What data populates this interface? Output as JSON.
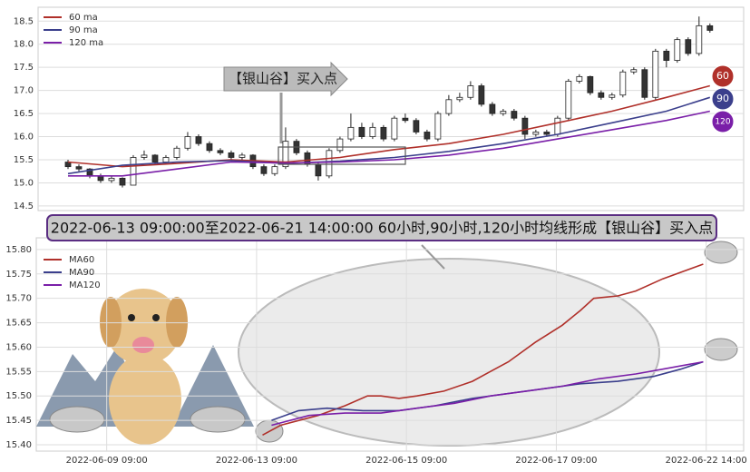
{
  "chart_data": [
    {
      "type": "candlestick",
      "annotation": "【银山谷】买入点",
      "ylim": [
        14.4,
        18.8
      ],
      "xlim": [
        -2.75,
        62.1
      ],
      "yticks": [
        14.5,
        {
          "value": 15.0,
          "label": "15.0"
        },
        15.5,
        {
          "value": 16.0,
          "label": "16.0"
        },
        16.5,
        {
          "value": 17.0,
          "label": "17.0"
        },
        17.5,
        {
          "value": 18.0,
          "label": "18.0"
        },
        18.5
      ],
      "grid": true,
      "candles": [
        [
          15.45,
          15.5,
          15.3,
          15.35
        ],
        [
          15.35,
          15.4,
          15.25,
          15.3
        ],
        [
          15.3,
          15.32,
          15.1,
          15.15
        ],
        [
          15.15,
          15.2,
          15.0,
          15.05
        ],
        [
          15.05,
          15.15,
          15.0,
          15.1
        ],
        [
          15.1,
          15.12,
          14.9,
          14.95
        ],
        [
          14.95,
          15.6,
          14.95,
          15.55
        ],
        [
          15.55,
          15.7,
          15.5,
          15.6
        ],
        [
          15.6,
          15.62,
          15.4,
          15.45
        ],
        [
          15.45,
          15.6,
          15.4,
          15.55
        ],
        [
          15.55,
          15.8,
          15.5,
          15.75
        ],
        [
          15.75,
          16.1,
          15.7,
          16.0
        ],
        [
          16.0,
          16.05,
          15.8,
          15.85
        ],
        [
          15.85,
          15.9,
          15.65,
          15.7
        ],
        [
          15.7,
          15.75,
          15.6,
          15.65
        ],
        [
          15.65,
          15.7,
          15.5,
          15.55
        ],
        [
          15.55,
          15.65,
          15.5,
          15.6
        ],
        [
          15.6,
          15.62,
          15.3,
          15.35
        ],
        [
          15.35,
          15.4,
          15.15,
          15.2
        ],
        [
          15.2,
          15.4,
          15.15,
          15.35
        ],
        [
          15.35,
          16.2,
          15.3,
          15.9
        ],
        [
          15.9,
          15.95,
          15.6,
          15.65
        ],
        [
          15.65,
          15.7,
          15.35,
          15.4
        ],
        [
          15.4,
          15.45,
          15.05,
          15.15
        ],
        [
          15.15,
          15.75,
          15.1,
          15.7
        ],
        [
          15.7,
          16.0,
          15.65,
          15.95
        ],
        [
          15.95,
          16.5,
          15.9,
          16.2
        ],
        [
          16.2,
          16.3,
          15.95,
          16.0
        ],
        [
          16.0,
          16.3,
          15.95,
          16.2
        ],
        [
          16.2,
          16.25,
          15.9,
          15.95
        ],
        [
          15.95,
          16.45,
          15.9,
          16.4
        ],
        [
          16.4,
          16.5,
          16.3,
          16.35
        ],
        [
          16.35,
          16.4,
          16.05,
          16.1
        ],
        [
          16.1,
          16.15,
          15.9,
          15.95
        ],
        [
          15.95,
          16.55,
          15.9,
          16.5
        ],
        [
          16.5,
          16.9,
          16.45,
          16.8
        ],
        [
          16.8,
          16.95,
          16.75,
          16.85
        ],
        [
          16.85,
          17.2,
          16.8,
          17.1
        ],
        [
          17.1,
          17.15,
          16.65,
          16.7
        ],
        [
          16.7,
          16.75,
          16.45,
          16.5
        ],
        [
          16.5,
          16.6,
          16.45,
          16.55
        ],
        [
          16.55,
          16.6,
          16.35,
          16.4
        ],
        [
          16.4,
          16.45,
          15.95,
          16.05
        ],
        [
          16.05,
          16.15,
          16.0,
          16.1
        ],
        [
          16.1,
          16.15,
          16.0,
          16.05
        ],
        [
          16.05,
          16.45,
          16.0,
          16.4
        ],
        [
          16.4,
          17.25,
          16.35,
          17.2
        ],
        [
          17.2,
          17.35,
          17.15,
          17.3
        ],
        [
          17.3,
          17.32,
          16.9,
          16.95
        ],
        [
          16.95,
          17.0,
          16.8,
          16.85
        ],
        [
          16.85,
          16.95,
          16.8,
          16.9
        ],
        [
          16.9,
          17.45,
          16.85,
          17.4
        ],
        [
          17.4,
          17.5,
          17.35,
          17.45
        ],
        [
          17.45,
          17.5,
          16.8,
          16.85
        ],
        [
          16.85,
          17.9,
          16.8,
          17.85
        ],
        [
          17.85,
          17.9,
          17.5,
          17.65
        ],
        [
          17.65,
          18.15,
          17.6,
          18.1
        ],
        [
          18.1,
          18.15,
          17.75,
          17.8
        ],
        [
          17.8,
          18.6,
          17.75,
          18.4
        ],
        [
          18.4,
          18.45,
          18.25,
          18.3
        ]
      ],
      "ma_x": [
        0,
        5,
        10,
        15,
        20,
        25,
        30,
        35,
        40,
        45,
        50,
        55,
        59
      ],
      "series": [
        {
          "name": "60 ma",
          "color": "#b0302a",
          "end_label": "60",
          "values": [
            15.45,
            15.35,
            15.42,
            15.5,
            15.45,
            15.55,
            15.72,
            15.85,
            16.05,
            16.3,
            16.55,
            16.85,
            17.1
          ]
        },
        {
          "name": "90 ma",
          "color": "#3b3f8c",
          "end_label": "90",
          "values": [
            15.2,
            15.38,
            15.45,
            15.48,
            15.42,
            15.47,
            15.55,
            15.68,
            15.85,
            16.05,
            16.3,
            16.55,
            16.85
          ]
        },
        {
          "name": "120 ma",
          "color": "#7a1fa8",
          "end_label": "120",
          "values": [
            15.15,
            15.15,
            15.3,
            15.45,
            15.43,
            15.45,
            15.5,
            15.6,
            15.75,
            15.95,
            16.15,
            16.35,
            16.55
          ]
        }
      ]
    },
    {
      "type": "line",
      "title": "2022-06-13 09:00:00至2022-06-21 14:00:00 60小时,90小时,120小时均线形成【银山谷】买入点",
      "ylim": [
        15.387,
        15.824
      ],
      "xlim": [
        -0.47,
        4.25
      ],
      "yticks": [
        {
          "value": 15.4,
          "label": "15.40"
        },
        15.45,
        {
          "value": 15.5,
          "label": "15.50"
        },
        15.55,
        {
          "value": 15.6,
          "label": "15.60"
        },
        15.65,
        {
          "value": 15.7,
          "label": "15.70"
        },
        15.75,
        {
          "value": 15.8,
          "label": "15.80"
        }
      ],
      "xticks": [
        {
          "value": 0,
          "label": "2022-06-09 09:00"
        },
        {
          "value": 1,
          "label": "2022-06-13 09:00"
        },
        {
          "value": 2,
          "label": "2022-06-15 09:00"
        },
        {
          "value": 3,
          "label": "2022-06-17 09:00"
        },
        {
          "value": 4,
          "label": "2022-06-22 14:00"
        }
      ],
      "grid": true,
      "series": [
        {
          "name": "MA60",
          "color": "#b0302a",
          "x": [
            1.04,
            1.16,
            1.41,
            1.59,
            1.74,
            1.83,
            1.95,
            2.07,
            2.25,
            2.44,
            2.56,
            2.68,
            2.86,
            3.04,
            3.16,
            3.25,
            3.41,
            3.53,
            3.71,
            3.98
          ],
          "values": [
            15.42,
            15.44,
            15.46,
            15.48,
            15.5,
            15.5,
            15.495,
            15.5,
            15.51,
            15.53,
            15.55,
            15.57,
            15.61,
            15.645,
            15.675,
            15.7,
            15.705,
            15.715,
            15.74,
            15.77
          ]
        },
        {
          "name": "MA90",
          "color": "#3b3f8c",
          "x": [
            1.1,
            1.28,
            1.47,
            1.71,
            1.95,
            2.19,
            2.44,
            2.68,
            2.92,
            3.16,
            3.41,
            3.65,
            3.83,
            3.98
          ],
          "values": [
            15.45,
            15.47,
            15.475,
            15.47,
            15.47,
            15.48,
            15.495,
            15.505,
            15.515,
            15.525,
            15.53,
            15.54,
            15.555,
            15.57
          ]
        },
        {
          "name": "MA120",
          "color": "#7a1fa8",
          "x": [
            1.1,
            1.35,
            1.59,
            1.83,
            2.07,
            2.32,
            2.56,
            2.8,
            3.04,
            3.28,
            3.53,
            3.71,
            3.98
          ],
          "values": [
            15.44,
            15.46,
            15.465,
            15.465,
            15.475,
            15.485,
            15.5,
            15.51,
            15.52,
            15.535,
            15.545,
            15.555,
            15.57
          ]
        }
      ]
    }
  ]
}
